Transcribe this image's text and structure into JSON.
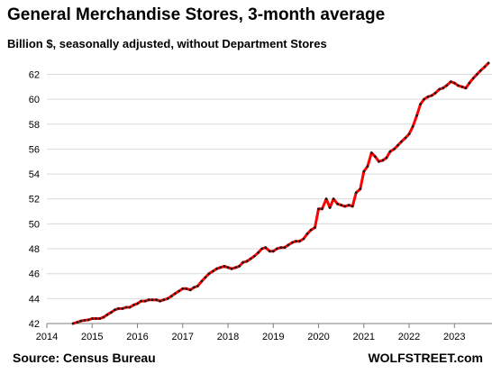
{
  "chart_data": {
    "type": "line",
    "title": "General Merchandise Stores, 3-month average",
    "subtitle": "Billion $, seasonally adjusted, without Department Stores",
    "source": "Source: Census Bureau",
    "brand": "WOLFSTREET.com",
    "xlabel": "",
    "ylabel": "",
    "xlim": [
      2014.0,
      2023.83
    ],
    "ylim": [
      42,
      62.9
    ],
    "x_ticks": [
      "2014",
      "2015",
      "2016",
      "2017",
      "2018",
      "2019",
      "2020",
      "2021",
      "2022",
      "2023"
    ],
    "y_ticks": [
      "42",
      "44",
      "46",
      "48",
      "50",
      "52",
      "54",
      "56",
      "58",
      "60",
      "62"
    ],
    "grid": "horizontal",
    "legend": "none",
    "colors": {
      "line": "#ff0000",
      "marker": "#1a1a1a",
      "grid": "#d9d9d9"
    },
    "series": [
      {
        "x": [
          2014.58,
          2014.67,
          2014.75,
          2014.83,
          2014.92,
          2015.0,
          2015.08,
          2015.17,
          2015.25,
          2015.33,
          2015.42,
          2015.5,
          2015.58,
          2015.67,
          2015.75,
          2015.83,
          2015.92,
          2016.0,
          2016.08,
          2016.17,
          2016.25,
          2016.33,
          2016.42,
          2016.5,
          2016.58,
          2016.67,
          2016.75,
          2016.83,
          2016.92,
          2017.0,
          2017.08,
          2017.17,
          2017.25,
          2017.33,
          2017.42,
          2017.5,
          2017.58,
          2017.67,
          2017.75,
          2017.83,
          2017.92,
          2018.0,
          2018.08,
          2018.17,
          2018.25,
          2018.33,
          2018.42,
          2018.5,
          2018.58,
          2018.67,
          2018.75,
          2018.83,
          2018.92,
          2019.0,
          2019.08,
          2019.17,
          2019.25,
          2019.33,
          2019.42,
          2019.5,
          2019.58,
          2019.67,
          2019.75,
          2019.83,
          2019.92,
          2020.0,
          2020.08,
          2020.17,
          2020.25,
          2020.33,
          2020.42,
          2020.5,
          2020.58,
          2020.67,
          2020.75,
          2020.83,
          2020.92,
          2021.0,
          2021.08,
          2021.17,
          2021.25,
          2021.33,
          2021.42,
          2021.5,
          2021.58,
          2021.67,
          2021.75,
          2021.83,
          2021.92,
          2022.0,
          2022.08,
          2022.17,
          2022.25,
          2022.33,
          2022.42,
          2022.5,
          2022.58,
          2022.67,
          2022.75,
          2022.83,
          2022.92,
          2023.0,
          2023.08,
          2023.17,
          2023.25,
          2023.33,
          2023.42,
          2023.5,
          2023.58,
          2023.67,
          2023.75
        ],
        "values": [
          42.0,
          42.1,
          42.2,
          42.25,
          42.3,
          42.4,
          42.4,
          42.4,
          42.5,
          42.7,
          42.9,
          43.1,
          43.2,
          43.2,
          43.3,
          43.3,
          43.5,
          43.6,
          43.8,
          43.8,
          43.9,
          43.9,
          43.9,
          43.8,
          43.9,
          44.0,
          44.2,
          44.4,
          44.6,
          44.8,
          44.8,
          44.7,
          44.9,
          45.0,
          45.4,
          45.7,
          46.0,
          46.2,
          46.4,
          46.5,
          46.6,
          46.5,
          46.4,
          46.5,
          46.6,
          46.9,
          47.0,
          47.2,
          47.4,
          47.7,
          48.0,
          48.1,
          47.8,
          47.8,
          48.0,
          48.1,
          48.1,
          48.3,
          48.5,
          48.6,
          48.6,
          48.8,
          49.2,
          49.5,
          49.7,
          51.2,
          51.2,
          52.0,
          51.3,
          52.0,
          51.6,
          51.5,
          51.4,
          51.5,
          51.4,
          52.5,
          52.8,
          54.2,
          54.6,
          55.7,
          55.4,
          55.0,
          55.1,
          55.3,
          55.8,
          56.0,
          56.3,
          56.6,
          56.9,
          57.2,
          57.8,
          58.7,
          59.6,
          60.0,
          60.2,
          60.3,
          60.5,
          60.8,
          60.9,
          61.1,
          61.4,
          61.3,
          61.1,
          61.0,
          60.9,
          61.3,
          61.7,
          62.0,
          62.3,
          62.6,
          62.9
        ]
      }
    ]
  }
}
